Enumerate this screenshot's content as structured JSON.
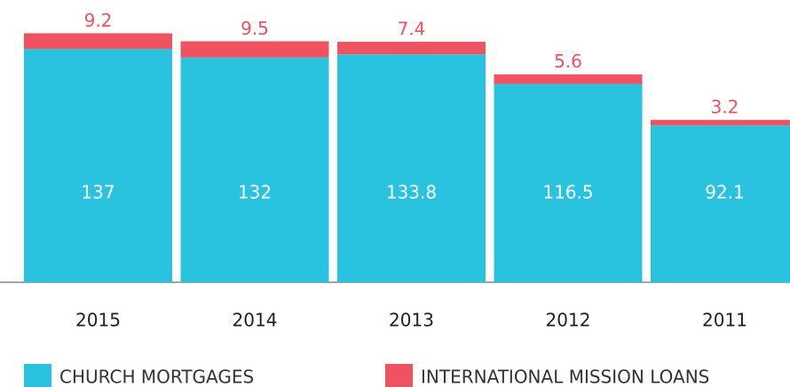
{
  "chart_data": {
    "type": "stacked_bar",
    "categories": [
      "2015",
      "2014",
      "2013",
      "2012",
      "2011"
    ],
    "series": [
      {
        "name": "CHURCH MORTGAGES",
        "color": "#29c3e0",
        "values": [
          137,
          132,
          133.8,
          116.5,
          92.1
        ]
      },
      {
        "name": "INTERNATIONAL MISSION LOANS",
        "color": "#f0525f",
        "values": [
          9.2,
          9.5,
          7.4,
          5.6,
          3.2
        ]
      }
    ],
    "ylim": [
      0,
      160
    ]
  }
}
